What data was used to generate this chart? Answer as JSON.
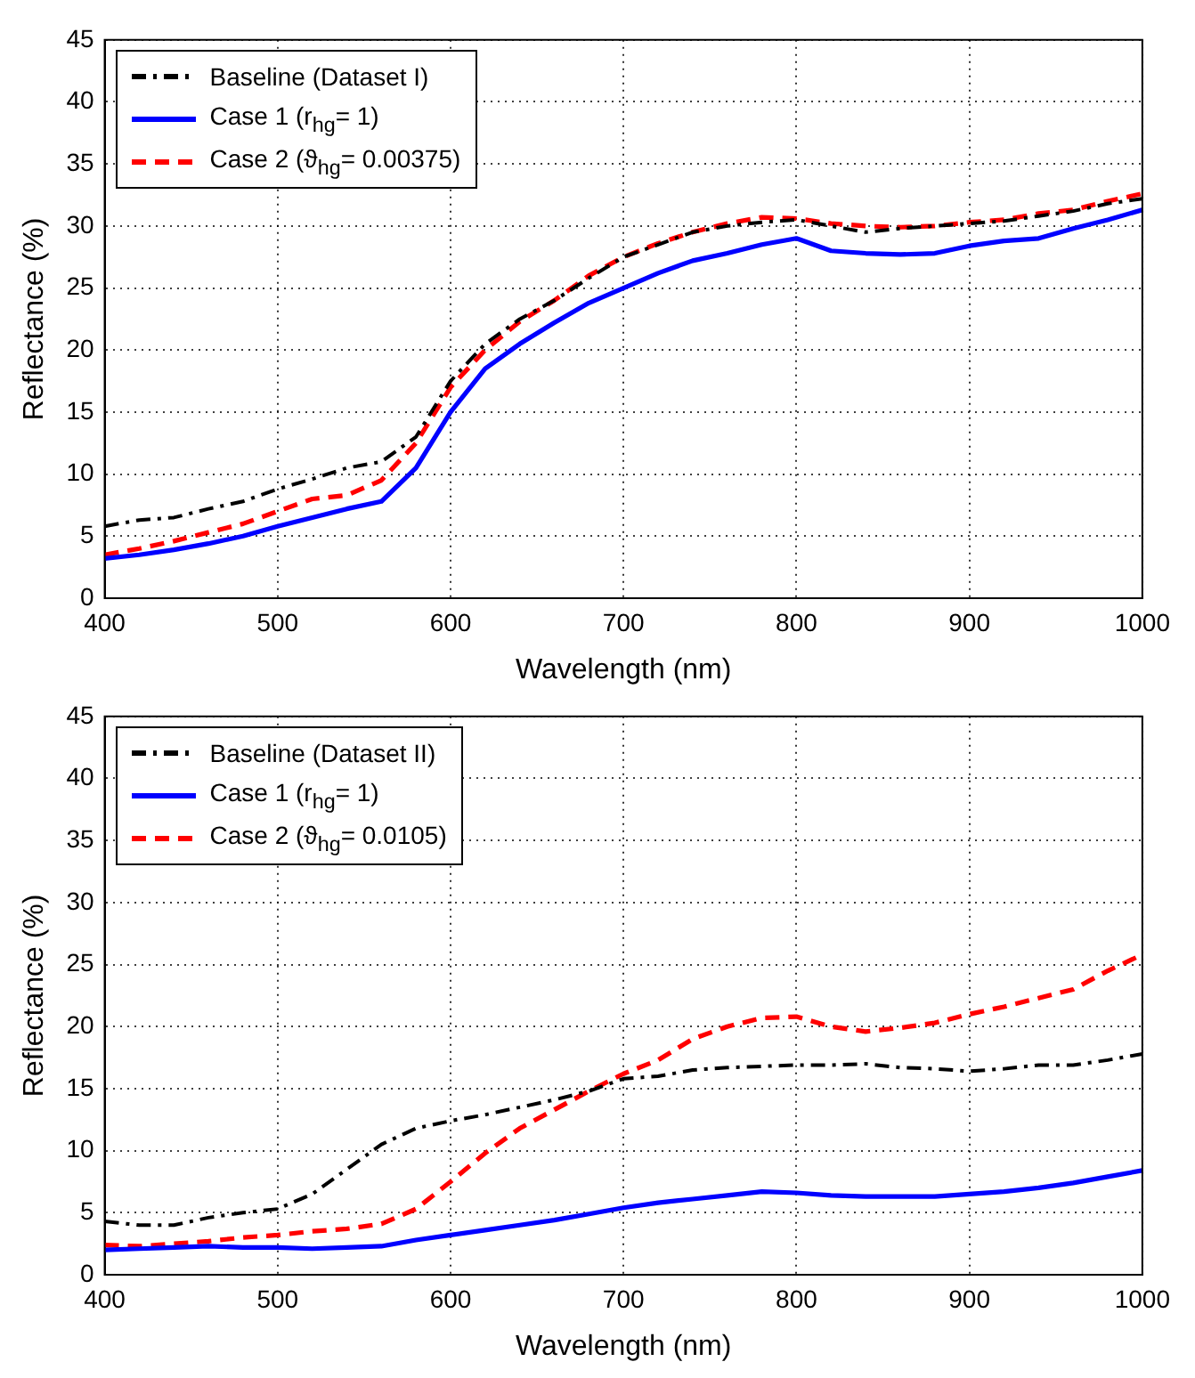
{
  "chart_data": [
    {
      "type": "line",
      "xlabel": "Wavelength (nm)",
      "ylabel": "Reflectance (%)",
      "x": [
        400,
        420,
        440,
        460,
        480,
        500,
        520,
        540,
        560,
        580,
        600,
        620,
        640,
        660,
        680,
        700,
        720,
        740,
        760,
        780,
        800,
        820,
        840,
        860,
        880,
        900,
        920,
        940,
        960,
        980,
        1000
      ],
      "xlim": [
        400,
        1000
      ],
      "xticks": [
        400,
        500,
        600,
        700,
        800,
        900,
        1000
      ],
      "ylim": [
        0,
        45
      ],
      "yticks": [
        0,
        5,
        10,
        15,
        20,
        25,
        30,
        35,
        40,
        45
      ],
      "grid": true,
      "legend": "top left",
      "marker": "none",
      "series": [
        {
          "name": "Baseline (Dataset I)",
          "color": "#000000",
          "line_style": "dashdot",
          "values": [
            5.8,
            6.3,
            6.5,
            7.2,
            7.8,
            8.8,
            9.6,
            10.5,
            11.0,
            13.0,
            17.5,
            20.5,
            22.5,
            24.0,
            25.8,
            27.5,
            28.5,
            29.5,
            30.0,
            30.3,
            30.5,
            30.0,
            29.5,
            29.8,
            30.0,
            30.2,
            30.4,
            30.8,
            31.2,
            31.8,
            32.2
          ]
        },
        {
          "name": "Case 1 (r$_{hg}$= 1)",
          "color": "#0000ff",
          "line_style": "solid",
          "values": [
            3.2,
            3.5,
            3.9,
            4.4,
            5.0,
            5.8,
            6.5,
            7.2,
            7.8,
            10.5,
            15.0,
            18.5,
            20.5,
            22.2,
            23.8,
            25.0,
            26.2,
            27.2,
            27.8,
            28.5,
            29.0,
            28.0,
            27.8,
            27.7,
            27.8,
            28.4,
            28.8,
            29.0,
            29.8,
            30.5,
            31.3
          ]
        },
        {
          "name": "Case 2 (ϑ$_{hg}$= 0.00375)",
          "color": "#ff0000",
          "line_style": "dashed",
          "values": [
            3.5,
            4.0,
            4.6,
            5.3,
            6.0,
            7.0,
            8.0,
            8.3,
            9.5,
            12.5,
            17.0,
            20.0,
            22.3,
            24.0,
            26.0,
            27.5,
            28.6,
            29.5,
            30.2,
            30.7,
            30.6,
            30.2,
            30.0,
            29.9,
            30.0,
            30.3,
            30.5,
            31.0,
            31.3,
            32.0,
            32.6
          ]
        }
      ]
    },
    {
      "type": "line",
      "xlabel": "Wavelength (nm)",
      "ylabel": "Reflectance (%)",
      "x": [
        400,
        420,
        440,
        460,
        480,
        500,
        520,
        540,
        560,
        580,
        600,
        620,
        640,
        660,
        680,
        700,
        720,
        740,
        760,
        780,
        800,
        820,
        840,
        860,
        880,
        900,
        920,
        940,
        960,
        980,
        1000
      ],
      "xlim": [
        400,
        1000
      ],
      "xticks": [
        400,
        500,
        600,
        700,
        800,
        900,
        1000
      ],
      "ylim": [
        0,
        45
      ],
      "yticks": [
        0,
        5,
        10,
        15,
        20,
        25,
        30,
        35,
        40,
        45
      ],
      "grid": true,
      "legend": "top left",
      "marker": "none",
      "series": [
        {
          "name": "Baseline (Dataset II)",
          "color": "#000000",
          "line_style": "dashdot",
          "values": [
            4.3,
            4.0,
            4.0,
            4.6,
            5.0,
            5.3,
            6.5,
            8.5,
            10.5,
            11.8,
            12.4,
            12.9,
            13.5,
            14.1,
            14.8,
            15.8,
            16.0,
            16.5,
            16.7,
            16.8,
            16.9,
            16.9,
            17.0,
            16.7,
            16.6,
            16.4,
            16.6,
            16.9,
            16.9,
            17.3,
            17.8
          ]
        },
        {
          "name": "Case 1 (r$_{hg}$= 1)",
          "color": "#0000ff",
          "line_style": "solid",
          "values": [
            2.0,
            2.1,
            2.2,
            2.3,
            2.2,
            2.2,
            2.1,
            2.2,
            2.3,
            2.8,
            3.2,
            3.6,
            4.0,
            4.4,
            4.9,
            5.4,
            5.8,
            6.1,
            6.4,
            6.7,
            6.6,
            6.4,
            6.3,
            6.3,
            6.3,
            6.5,
            6.7,
            7.0,
            7.4,
            7.9,
            8.4
          ]
        },
        {
          "name": "Case 2 (ϑ$_{hg}$= 0.0105)",
          "color": "#ff0000",
          "line_style": "dashed",
          "values": [
            2.4,
            2.3,
            2.5,
            2.7,
            3.0,
            3.2,
            3.5,
            3.7,
            4.1,
            5.3,
            7.5,
            9.8,
            11.8,
            13.3,
            14.8,
            16.2,
            17.3,
            19.0,
            20.0,
            20.7,
            20.8,
            20.0,
            19.6,
            19.9,
            20.3,
            21.0,
            21.6,
            22.3,
            23.0,
            24.5,
            25.8
          ]
        }
      ]
    }
  ]
}
